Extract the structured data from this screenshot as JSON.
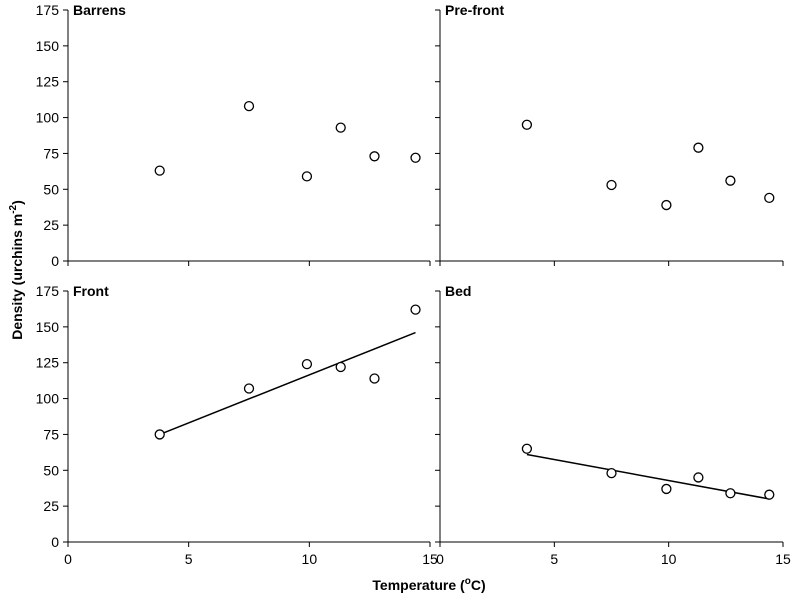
{
  "chart_data": {
    "type": "scatter",
    "xlabel": "Temperature (°C)",
    "xlabel_parts": {
      "prefix": "Temperature (",
      "sup": "o",
      "suffix": "C)"
    },
    "ylabel": "Density (urchins m-2)",
    "ylabel_parts": {
      "prefix": "Density (urchins m",
      "sup": "-2",
      "suffix": ")"
    },
    "xlim": [
      0,
      15
    ],
    "ylim": [
      0,
      175
    ],
    "xticks": [
      0,
      5,
      10,
      15
    ],
    "yticks": [
      0,
      25,
      50,
      75,
      100,
      125,
      150,
      175
    ],
    "grid": false,
    "panels": [
      {
        "title": "Barrens",
        "points": [
          [
            3.8,
            63
          ],
          [
            7.5,
            108
          ],
          [
            9.9,
            59
          ],
          [
            11.3,
            93
          ],
          [
            12.7,
            73
          ],
          [
            14.4,
            72
          ]
        ],
        "trendline": null
      },
      {
        "title": "Pre-front",
        "points": [
          [
            3.8,
            95
          ],
          [
            7.5,
            53
          ],
          [
            9.9,
            39
          ],
          [
            11.3,
            79
          ],
          [
            12.7,
            56
          ],
          [
            14.4,
            44
          ]
        ],
        "trendline": null
      },
      {
        "title": "Front",
        "points": [
          [
            3.8,
            75
          ],
          [
            7.5,
            107
          ],
          [
            9.9,
            124
          ],
          [
            11.3,
            122
          ],
          [
            12.7,
            114
          ],
          [
            14.4,
            162
          ]
        ],
        "trendline": [
          [
            3.8,
            75
          ],
          [
            14.4,
            146
          ]
        ]
      },
      {
        "title": "Bed",
        "points": [
          [
            3.8,
            65
          ],
          [
            7.5,
            48
          ],
          [
            9.9,
            37
          ],
          [
            11.3,
            45
          ],
          [
            12.7,
            34
          ],
          [
            14.4,
            33
          ]
        ],
        "trendline": [
          [
            3.8,
            61
          ],
          [
            14.4,
            30
          ]
        ]
      }
    ]
  }
}
